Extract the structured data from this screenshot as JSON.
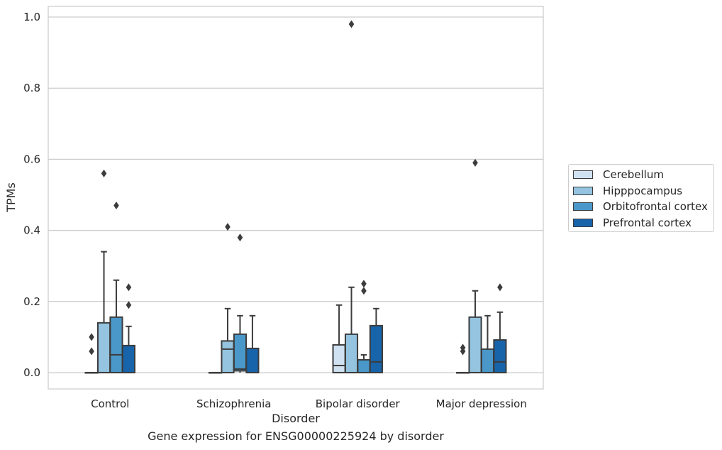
{
  "caption": "Gene expression for ENSG00000225924 by disorder",
  "chart_data": {
    "type": "box",
    "xlabel": "Disorder",
    "ylabel": "TPMs",
    "ylim": [
      -0.046,
      1.03
    ],
    "yticks": [
      0.0,
      0.2,
      0.4,
      0.6,
      0.8,
      1.0
    ],
    "ytick_labels": [
      "0.0",
      "0.2",
      "0.4",
      "0.6",
      "0.8",
      "1.0"
    ],
    "grid": "horizontal",
    "legend_position": "right",
    "categories": [
      "Control",
      "Schizophrenia",
      "Bipolar disorder",
      "Major depression"
    ],
    "series": [
      {
        "name": "Cerebellum",
        "color": "#d0e1f2",
        "boxes": [
          {
            "whisker_low": 0,
            "q1": 0,
            "median": 0,
            "q3": 0,
            "whisker_high": 0,
            "outliers": [
              0.06,
              0.1
            ]
          },
          {
            "whisker_low": 0,
            "q1": 0,
            "median": 0,
            "q3": 0,
            "whisker_high": 0,
            "outliers": []
          },
          {
            "whisker_low": 0,
            "q1": 0,
            "median": 0.02,
            "q3": 0.078,
            "whisker_high": 0.19,
            "outliers": []
          },
          {
            "whisker_low": 0,
            "q1": 0,
            "median": 0,
            "q3": 0,
            "whisker_high": 0,
            "outliers": [
              0.06,
              0.07
            ]
          }
        ]
      },
      {
        "name": "Hipppocampus",
        "color": "#94c4df",
        "boxes": [
          {
            "whisker_low": 0,
            "q1": 0,
            "median": 0,
            "q3": 0.14,
            "whisker_high": 0.34,
            "outliers": [
              0.56
            ]
          },
          {
            "whisker_low": 0,
            "q1": 0,
            "median": 0.066,
            "q3": 0.089,
            "whisker_high": 0.18,
            "outliers": [
              0.41
            ]
          },
          {
            "whisker_low": 0,
            "q1": 0,
            "median": 0,
            "q3": 0.108,
            "whisker_high": 0.24,
            "outliers": [
              0.98
            ]
          },
          {
            "whisker_low": 0,
            "q1": 0,
            "median": 0,
            "q3": 0.156,
            "whisker_high": 0.23,
            "outliers": [
              0.59
            ]
          }
        ]
      },
      {
        "name": "Orbitofrontal cortex",
        "color": "#4a98c9",
        "boxes": [
          {
            "whisker_low": 0,
            "q1": 0,
            "median": 0.05,
            "q3": 0.156,
            "whisker_high": 0.26,
            "outliers": [
              0.47
            ]
          },
          {
            "whisker_low": 0,
            "q1": 0.005,
            "median": 0.01,
            "q3": 0.108,
            "whisker_high": 0.16,
            "outliers": [
              0.38
            ]
          },
          {
            "whisker_low": 0,
            "q1": 0,
            "median": 0,
            "q3": 0.036,
            "whisker_high": 0.05,
            "outliers": [
              0.23,
              0.25
            ]
          },
          {
            "whisker_low": 0,
            "q1": 0,
            "median": 0,
            "q3": 0.066,
            "whisker_high": 0.16,
            "outliers": []
          }
        ]
      },
      {
        "name": "Prefrontal cortex",
        "color": "#1764ab",
        "boxes": [
          {
            "whisker_low": 0,
            "q1": 0,
            "median": 0,
            "q3": 0.076,
            "whisker_high": 0.13,
            "outliers": [
              0.19,
              0.24
            ]
          },
          {
            "whisker_low": 0,
            "q1": 0,
            "median": 0,
            "q3": 0.068,
            "whisker_high": 0.16,
            "outliers": []
          },
          {
            "whisker_low": 0,
            "q1": 0,
            "median": 0.03,
            "q3": 0.132,
            "whisker_high": 0.18,
            "outliers": []
          },
          {
            "whisker_low": 0,
            "q1": 0,
            "median": 0.03,
            "q3": 0.092,
            "whisker_high": 0.17,
            "outliers": [
              0.24
            ]
          }
        ]
      }
    ]
  }
}
